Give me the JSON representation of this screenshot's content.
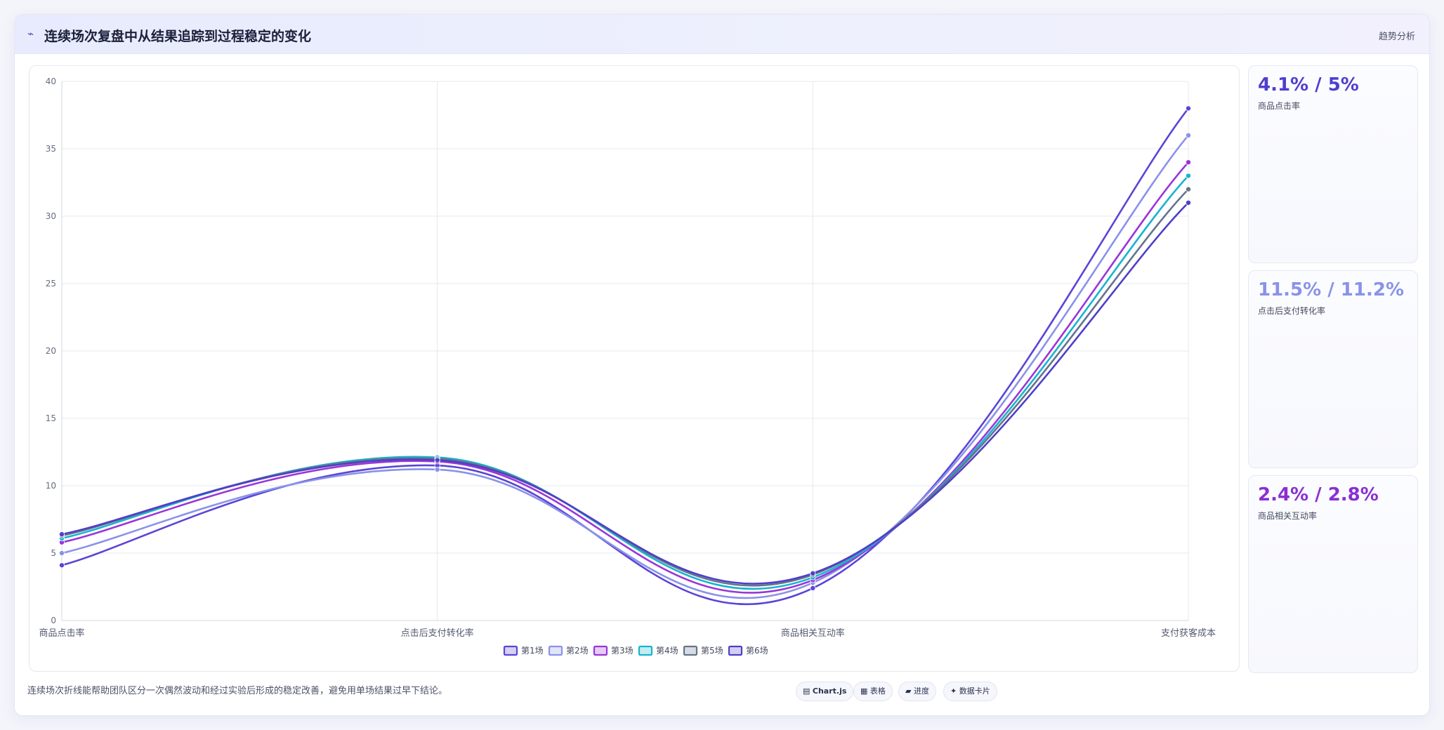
{
  "header": {
    "icon": "trend-line-icon",
    "icon_glyph": "⌁",
    "title": "连续场次复盘中从结果追踪到过程稳定的变化",
    "tag": "趋势分析"
  },
  "chart_data": {
    "type": "line",
    "categories": [
      "商品点击率",
      "点击后支付转化率",
      "商品相关互动率",
      "支付获客成本"
    ],
    "ylim": [
      0,
      40
    ],
    "yticks": [
      0,
      5,
      10,
      15,
      20,
      25,
      30,
      35,
      40
    ],
    "grid": true,
    "legend_position": "bottom",
    "series": [
      {
        "name": "第1场",
        "color": "#5b45d6",
        "values": [
          4.1,
          11.5,
          2.4,
          38
        ]
      },
      {
        "name": "第2场",
        "color": "#8a92e8",
        "values": [
          5.0,
          11.2,
          2.8,
          36
        ]
      },
      {
        "name": "第3场",
        "color": "#9b35d9",
        "values": [
          5.8,
          11.8,
          3.0,
          34
        ]
      },
      {
        "name": "第4场",
        "color": "#18b4cf",
        "values": [
          6.1,
          12.1,
          3.2,
          33
        ]
      },
      {
        "name": "第5场",
        "color": "#64748b",
        "values": [
          6.3,
          12.0,
          3.4,
          32
        ]
      },
      {
        "name": "第6场",
        "color": "#4f3fc8",
        "values": [
          6.4,
          11.9,
          3.5,
          31
        ]
      }
    ]
  },
  "stats": [
    {
      "value": "4.1% / 5%",
      "label": "商品点击率",
      "color": "#4d3fd0"
    },
    {
      "value": "11.5% / 11.2%",
      "label": "点击后支付转化率",
      "color": "#8a92e8"
    },
    {
      "value": "2.4% / 2.8%",
      "label": "商品相关互动率",
      "color": "#8a2fd0"
    }
  ],
  "footer": {
    "note": "连续场次折线能帮助团队区分一次偶然波动和经过实验后形成的稳定改善，避免用单场结果过早下结论。",
    "chips": [
      {
        "icon": "chart-icon",
        "glyph": "▤",
        "label": "Chart.js"
      },
      {
        "icon": "table-icon",
        "glyph": "▦",
        "label": "表格"
      },
      {
        "icon": "progress-icon",
        "glyph": "▰",
        "label": "进度"
      },
      {
        "icon": "sparkle-icon",
        "glyph": "✦",
        "label": "数据卡片"
      }
    ]
  }
}
